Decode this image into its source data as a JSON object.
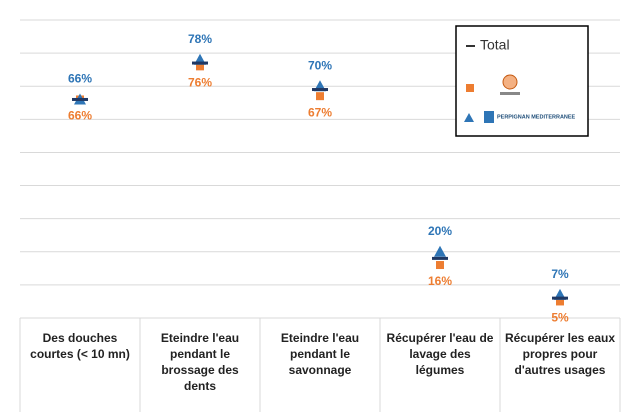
{
  "chart_data": {
    "type": "dot",
    "categories": [
      "Des douches courtes (< 10 mn)",
      "Eteindre l'eau pendant le brossage des dents",
      "Eteindre l'eau pendant le savonnage",
      "Récupérer l'eau de lavage des légumes",
      "Récupérer les eaux propres pour d'autres usages"
    ],
    "series": [
      {
        "name": "Total",
        "color": "#1f3864",
        "marker": "dash",
        "values": [
          66,
          77,
          69,
          18,
          6
        ]
      },
      {
        "color": "#ed7d31",
        "marker": "square",
        "values": [
          66,
          76,
          67,
          16,
          5
        ],
        "value_labels": [
          "66%",
          "76%",
          "67%",
          "16%",
          "5%"
        ]
      },
      {
        "name": "PERPIGNAN MEDITERRANEE",
        "color": "#2e75b6",
        "marker": "triangle",
        "values": [
          66,
          78,
          70,
          20,
          7
        ],
        "value_labels": [
          "66%",
          "78%",
          "70%",
          "20%",
          "7%"
        ]
      }
    ],
    "ylim": [
      0,
      90
    ],
    "yticks": [
      0,
      10,
      20,
      30,
      40,
      50,
      60,
      70,
      80,
      90
    ],
    "grid": true,
    "legend": "top-right"
  }
}
